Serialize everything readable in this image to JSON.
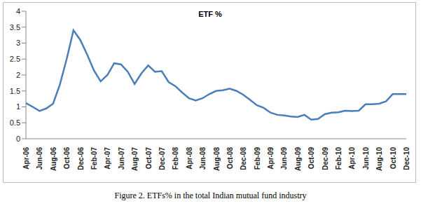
{
  "chart_data": {
    "type": "line",
    "title": "ETF %",
    "caption": "Figure 2. ETFs% in the total Indian mutual fund industry",
    "categories": [
      "Apr-06",
      null,
      "Jun-06",
      null,
      "Aug-06",
      null,
      "Oct-06",
      null,
      "Dec-06",
      null,
      "Feb-07",
      null,
      "Apr-07",
      null,
      "Jun-07",
      null,
      "Aug-07",
      null,
      "Oct-07",
      null,
      "Dec-07",
      null,
      "Feb-08",
      null,
      "Apr-08",
      null,
      "Jun-08",
      null,
      "Aug-08",
      null,
      "Oct-08",
      null,
      "Dec-08",
      null,
      "Feb-09",
      null,
      "Apr-09",
      null,
      "Jun-09",
      null,
      "Aug-09",
      null,
      "Oct-09",
      null,
      "Dec-09",
      null,
      "Feb-10",
      null,
      "Apr-10",
      null,
      "Jun-10",
      null,
      "Aug-10",
      null,
      "Oct-10",
      null,
      "Dec-10"
    ],
    "values": [
      1.12,
      1.0,
      0.87,
      0.95,
      1.1,
      1.7,
      2.5,
      3.4,
      3.1,
      2.65,
      2.15,
      1.8,
      2.0,
      2.37,
      2.33,
      2.1,
      1.72,
      2.05,
      2.3,
      2.1,
      2.12,
      1.78,
      1.65,
      1.45,
      1.27,
      1.2,
      1.27,
      1.4,
      1.5,
      1.52,
      1.57,
      1.5,
      1.38,
      1.22,
      1.05,
      0.97,
      0.82,
      0.75,
      0.73,
      0.7,
      0.68,
      0.75,
      0.6,
      0.62,
      0.77,
      0.82,
      0.83,
      0.88,
      0.87,
      0.88,
      1.08,
      1.08,
      1.1,
      1.17,
      1.4,
      1.4,
      1.4
    ],
    "color": "#4a7ebb",
    "ylim": [
      0,
      4
    ],
    "yticks": [
      0,
      0.5,
      1,
      1.5,
      2,
      2.5,
      3,
      3.5,
      4
    ],
    "grid": false
  }
}
